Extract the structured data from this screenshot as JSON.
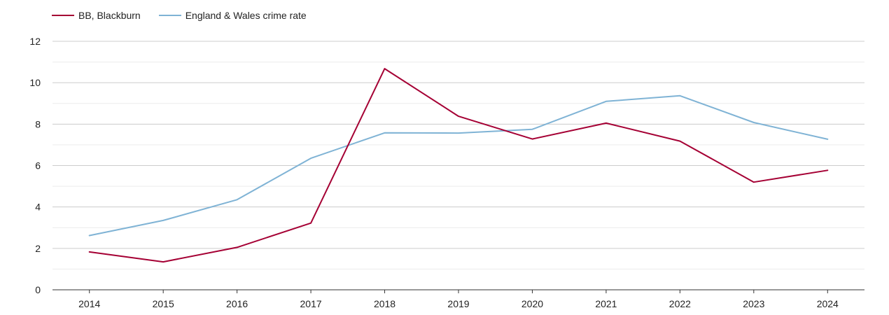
{
  "chart_data": {
    "type": "line",
    "categories": [
      "2014",
      "2015",
      "2016",
      "2017",
      "2018",
      "2019",
      "2020",
      "2021",
      "2022",
      "2023",
      "2024"
    ],
    "series": [
      {
        "name": "BB, Blackburn",
        "color": "#a50034",
        "values": [
          1.83,
          1.35,
          2.05,
          3.22,
          10.68,
          8.38,
          7.28,
          8.05,
          7.18,
          5.2,
          5.77
        ]
      },
      {
        "name": "England & Wales crime rate",
        "color": "#7fb3d5",
        "values": [
          2.62,
          3.35,
          4.35,
          6.35,
          7.58,
          7.57,
          7.75,
          9.1,
          9.37,
          8.08,
          7.27
        ]
      }
    ],
    "y_ticks": [
      "0",
      "2",
      "4",
      "6",
      "8",
      "10",
      "12"
    ],
    "ylim": [
      0,
      12
    ],
    "grid": true,
    "legend_position": "top-left"
  }
}
